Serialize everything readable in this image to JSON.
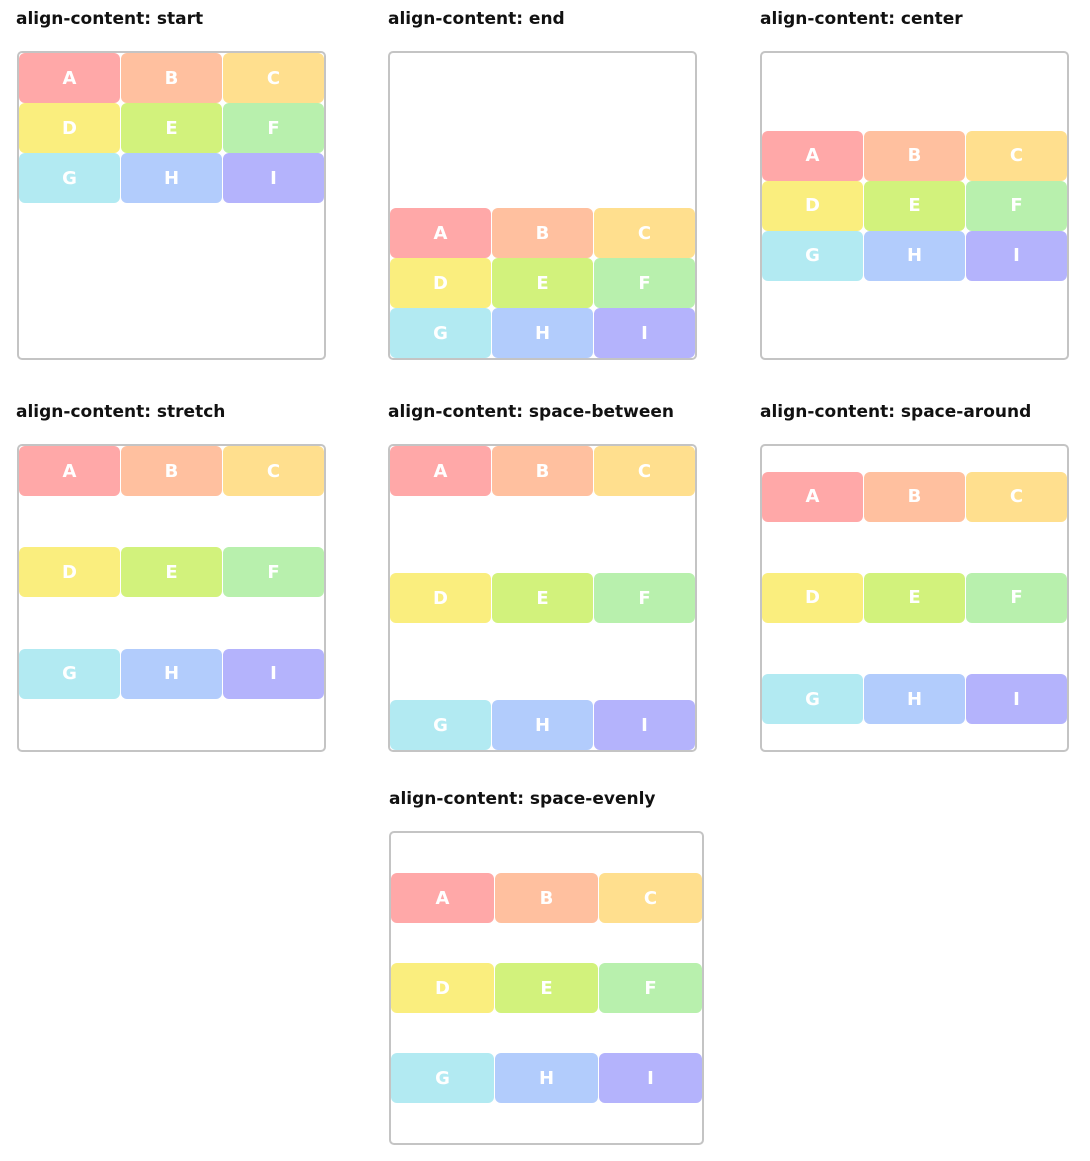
{
  "panels": [
    {
      "title": "align-content: start",
      "align": "start"
    },
    {
      "title": "align-content: end",
      "align": "end"
    },
    {
      "title": "align-content: center",
      "align": "center"
    },
    {
      "title": "align-content: stretch",
      "align": "stretch"
    },
    {
      "title": "align-content: space-between",
      "align": "space-between"
    },
    {
      "title": "align-content: space-around",
      "align": "space-around"
    },
    {
      "title": "align-content: space-evenly",
      "align": "space-evenly"
    }
  ],
  "items": [
    {
      "label": "A",
      "color": "#ffa8a8"
    },
    {
      "label": "B",
      "color": "#ffc09f"
    },
    {
      "label": "C",
      "color": "#ffdf8e"
    },
    {
      "label": "D",
      "color": "#faee7e"
    },
    {
      "label": "E",
      "color": "#d2f27c"
    },
    {
      "label": "F",
      "color": "#b8f0ad"
    },
    {
      "label": "G",
      "color": "#b2eaf2"
    },
    {
      "label": "H",
      "color": "#b2ccfc"
    },
    {
      "label": "I",
      "color": "#b4b3fc"
    }
  ]
}
